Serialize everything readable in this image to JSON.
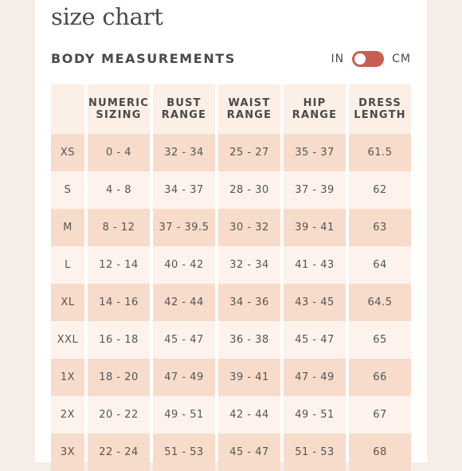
{
  "page_title": "size chart",
  "section_title": "BODY MEASUREMENTS",
  "unit_toggle": {
    "left_label": "IN",
    "right_label": "CM",
    "active_unit": "CM",
    "switch_color": "#c85f55"
  },
  "table": {
    "headers": [
      {
        "line1": "",
        "line2": ""
      },
      {
        "line1": "NUMERIC",
        "line2": "SIZING"
      },
      {
        "line1": "BUST",
        "line2": "RANGE"
      },
      {
        "line1": "WAIST",
        "line2": "RANGE"
      },
      {
        "line1": "HIP",
        "line2": "RANGE"
      },
      {
        "line1": "DRESS",
        "line2": "LENGTH"
      }
    ],
    "rows": [
      [
        "XS",
        "0 - 4",
        "32 - 34",
        "25 - 27",
        "35 - 37",
        "61.5"
      ],
      [
        "S",
        "4 - 8",
        "34 - 37",
        "28 - 30",
        "37 - 39",
        "62"
      ],
      [
        "M",
        "8 - 12",
        "37 - 39.5",
        "30 - 32",
        "39 - 41",
        "63"
      ],
      [
        "L",
        "12 - 14",
        "40 - 42",
        "32 - 34",
        "41 - 43",
        "64"
      ],
      [
        "XL",
        "14 - 16",
        "42 - 44",
        "34 - 36",
        "43 - 45",
        "64.5"
      ],
      [
        "XXL",
        "16 - 18",
        "45 - 47",
        "36 - 38",
        "45 - 47",
        "65"
      ],
      [
        "1X",
        "18 - 20",
        "47 - 49",
        "39 - 41",
        "47 - 49",
        "66"
      ],
      [
        "2X",
        "20 - 22",
        "49 - 51",
        "42 - 44",
        "49 - 51",
        "67"
      ],
      [
        "3X",
        "22 - 24",
        "51 - 53",
        "45 - 47",
        "51 - 53",
        "68"
      ]
    ]
  },
  "colors": {
    "row_shaded": "#f7dccb",
    "row_light": "#fdf3ec",
    "header_bg": "#fcefe6",
    "text": "#4a4a4a"
  }
}
